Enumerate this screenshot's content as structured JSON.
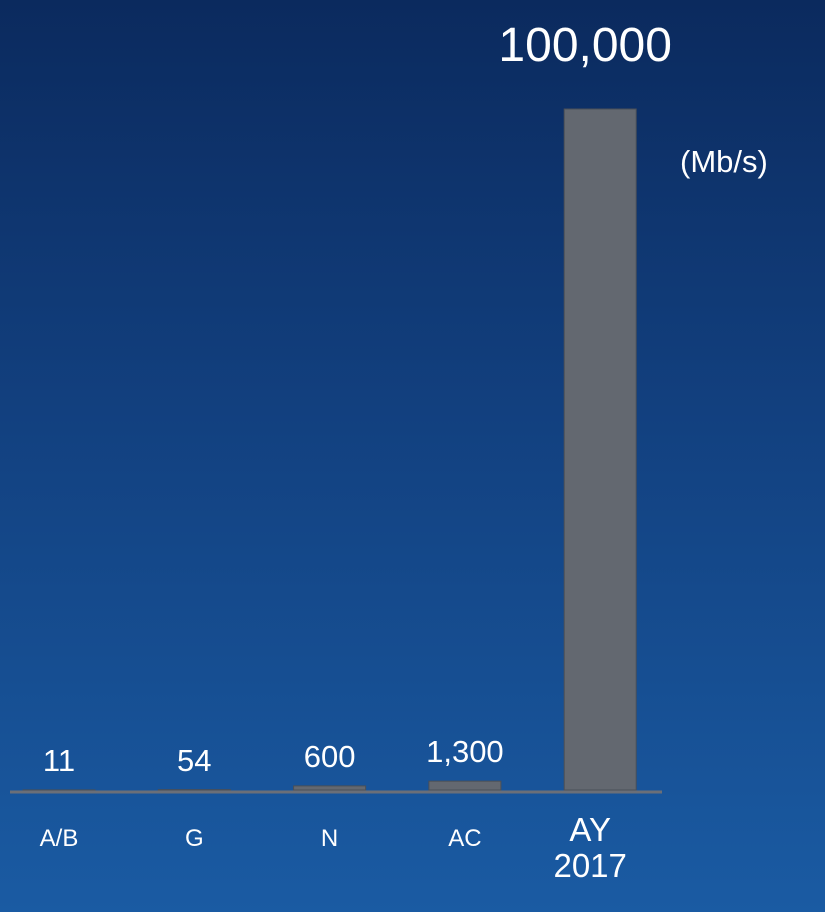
{
  "chart_data": {
    "type": "bar",
    "categories": [
      "A/B",
      "G",
      "N",
      "AC",
      "AY 2017"
    ],
    "values": [
      11,
      54,
      600,
      1300,
      100000
    ],
    "value_labels": [
      "11",
      "54",
      "600",
      "1,300",
      "100,000"
    ],
    "unit_label": "(Mb/s)",
    "color": "#636870",
    "ylim": [
      0,
      100000
    ]
  }
}
